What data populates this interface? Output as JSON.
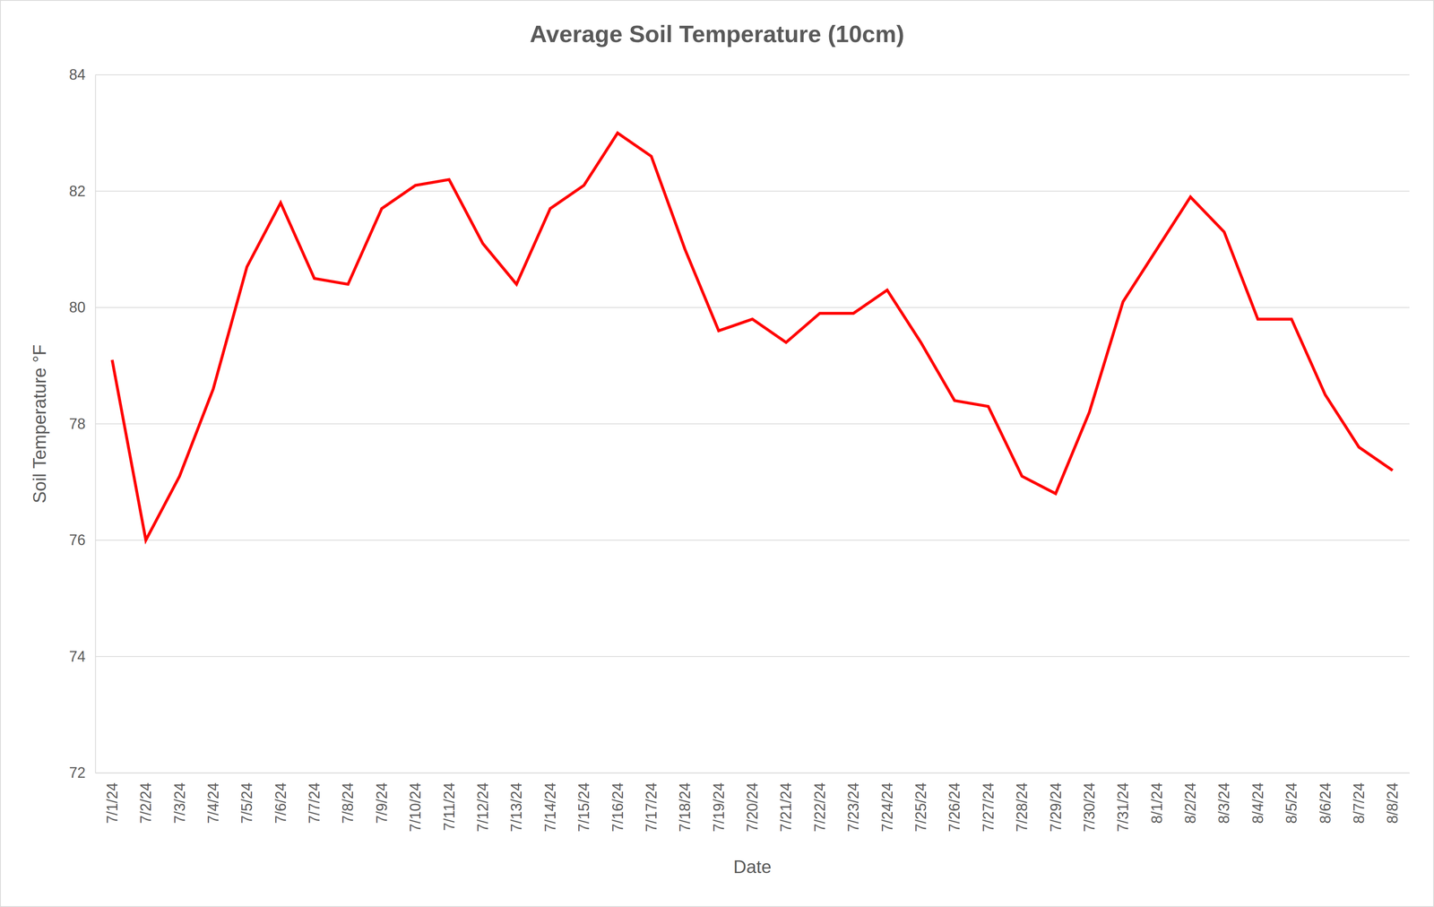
{
  "chart_data": {
    "type": "line",
    "title": "Average Soil Temperature (10cm)",
    "x_label": "Date",
    "y_label": "Soil Temperature °F",
    "categories": [
      "7/1/24",
      "7/2/24",
      "7/3/24",
      "7/4/24",
      "7/5/24",
      "7/6/24",
      "7/7/24",
      "7/8/24",
      "7/9/24",
      "7/10/24",
      "7/11/24",
      "7/12/24",
      "7/13/24",
      "7/14/24",
      "7/15/24",
      "7/16/24",
      "7/17/24",
      "7/18/24",
      "7/19/24",
      "7/20/24",
      "7/21/24",
      "7/22/24",
      "7/23/24",
      "7/24/24",
      "7/25/24",
      "7/26/24",
      "7/27/24",
      "7/28/24",
      "7/29/24",
      "7/30/24",
      "7/31/24",
      "8/1/24",
      "8/2/24",
      "8/3/24",
      "8/4/24",
      "8/5/24",
      "8/6/24",
      "8/7/24",
      "8/8/24"
    ],
    "values": [
      79.1,
      76.0,
      77.1,
      78.6,
      80.7,
      81.8,
      80.5,
      80.4,
      81.7,
      82.1,
      82.2,
      81.1,
      80.4,
      81.7,
      82.1,
      83.0,
      82.6,
      81.0,
      79.6,
      79.8,
      79.4,
      79.9,
      79.9,
      80.3,
      79.4,
      78.4,
      78.3,
      77.1,
      76.8,
      78.2,
      80.1,
      81.0,
      81.9,
      81.3,
      79.8,
      79.8,
      78.5,
      77.6,
      77.2
    ],
    "color": "#ff0000",
    "ylim": [
      72,
      84
    ],
    "yticks": [
      72,
      74,
      76,
      78,
      80,
      82,
      84
    ],
    "grid": true
  }
}
